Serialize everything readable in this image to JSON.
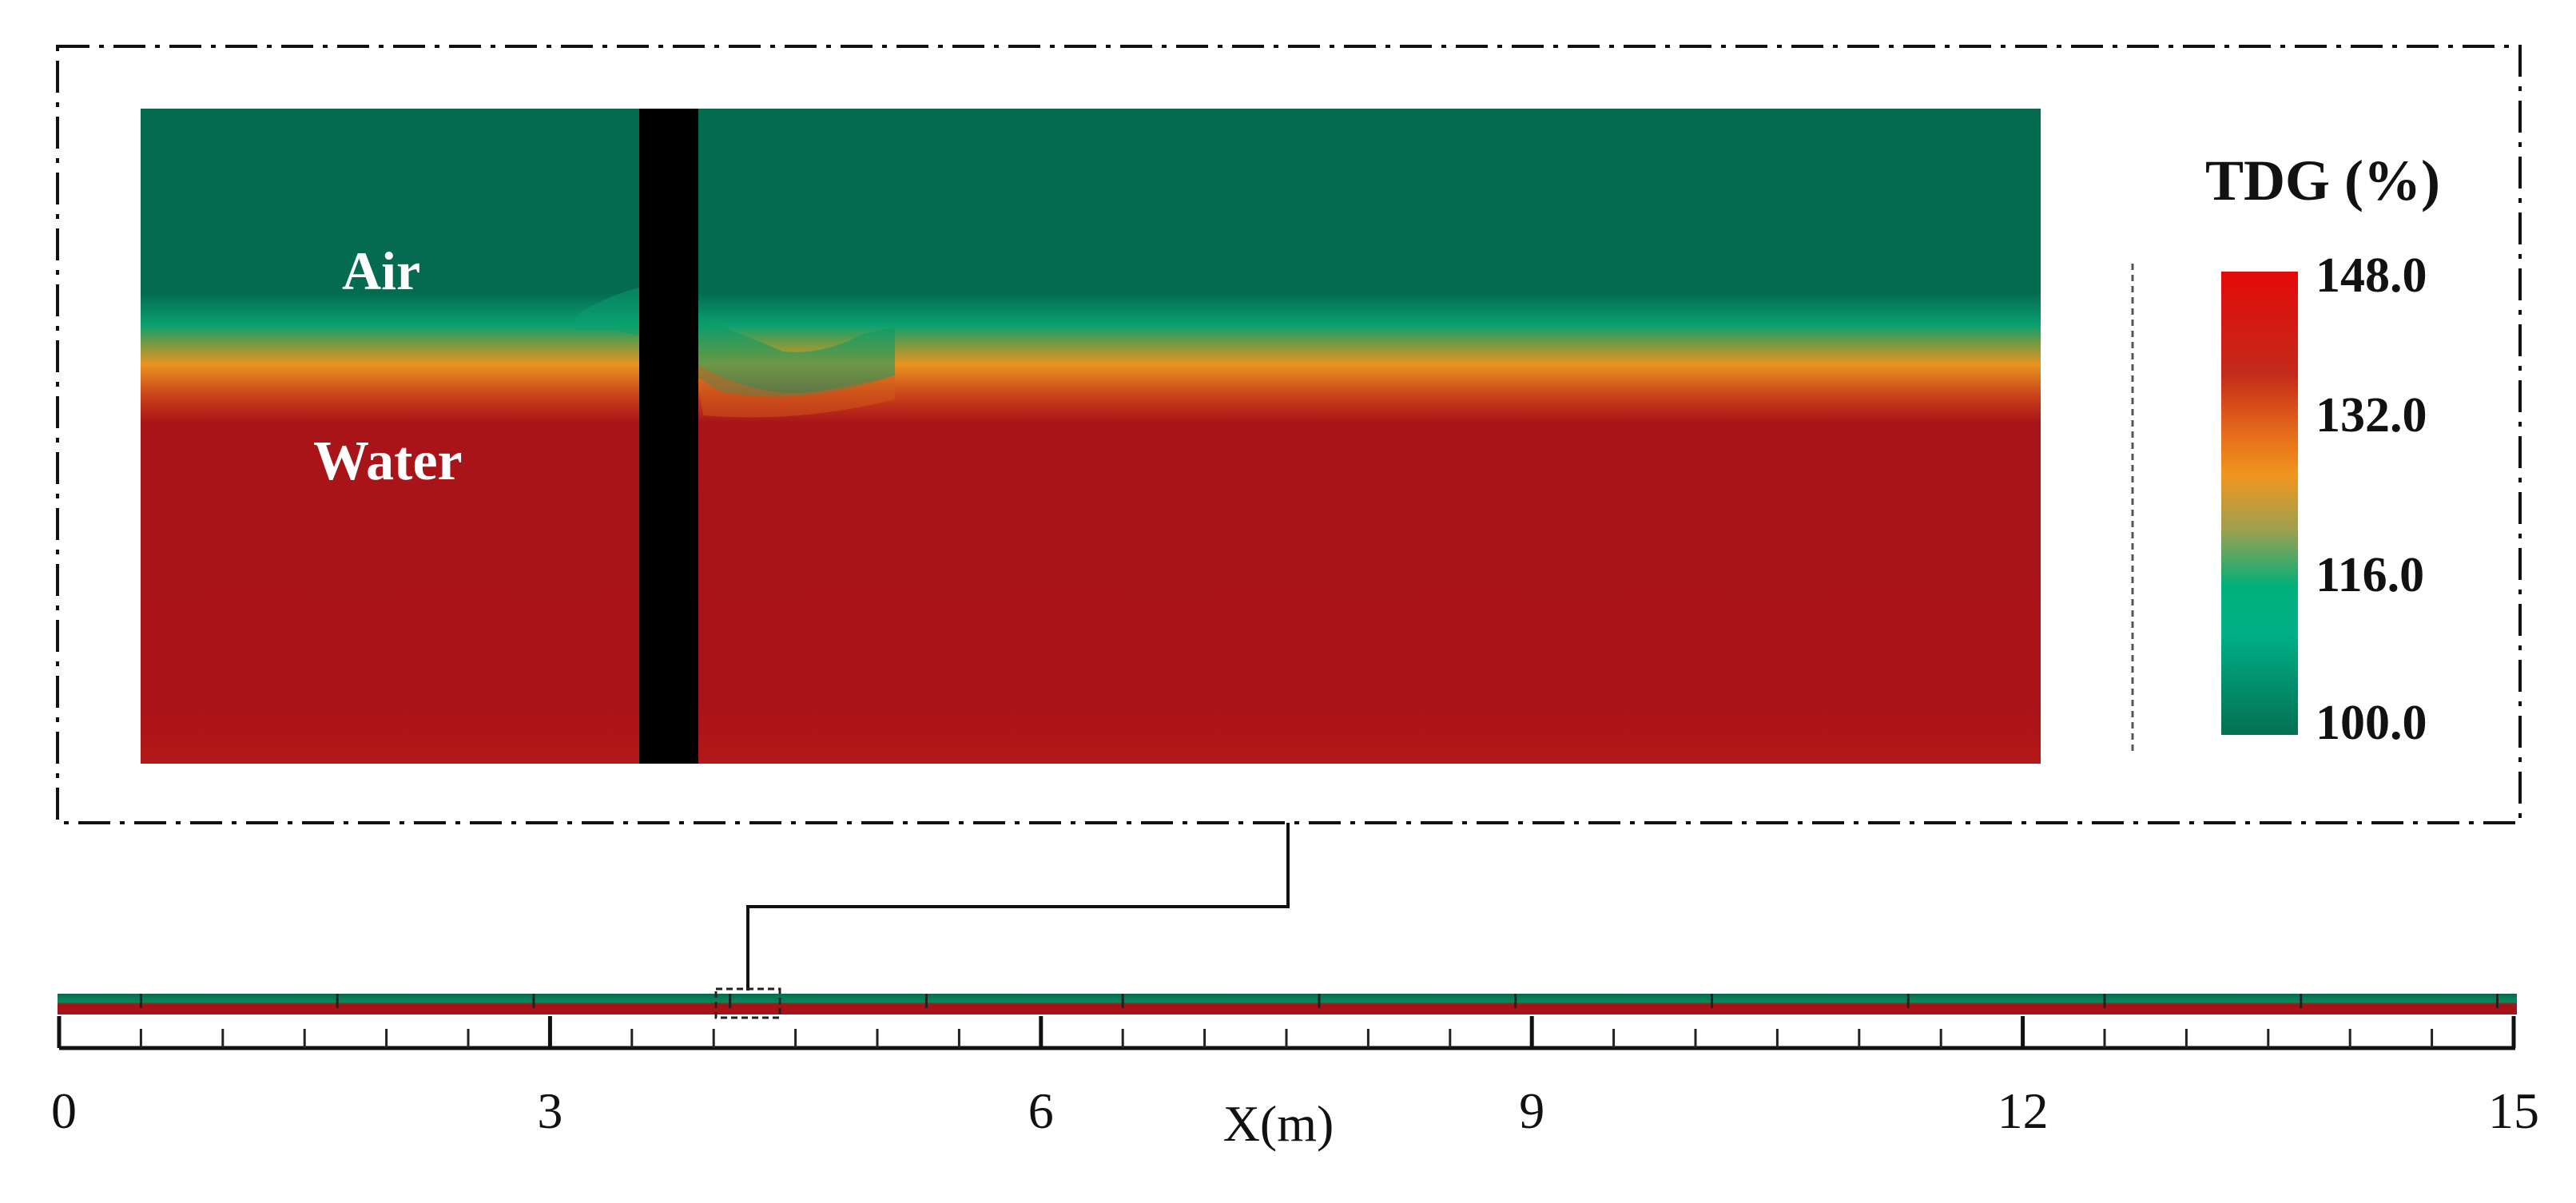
{
  "zoom_panel": {
    "air_label": "Air",
    "water_label": "Water"
  },
  "colorbar": {
    "title": "TDG (%)",
    "ticks": [
      "148.0",
      "132.0",
      "116.0",
      "100.0"
    ],
    "min": 100.0,
    "max": 148.0,
    "colors": [
      "#e30a0a",
      "#c02418",
      "#f0901c",
      "#00b07a",
      "#006b4f"
    ]
  },
  "overview_axis": {
    "label": "X(m)",
    "ticks": [
      "0",
      "3",
      "6",
      "9",
      "12",
      "15"
    ],
    "range": [
      0,
      15
    ]
  },
  "colors": {
    "air": "#036a50",
    "water": "#a61218",
    "interface": "#e8941e",
    "obstacle": "#000000"
  }
}
